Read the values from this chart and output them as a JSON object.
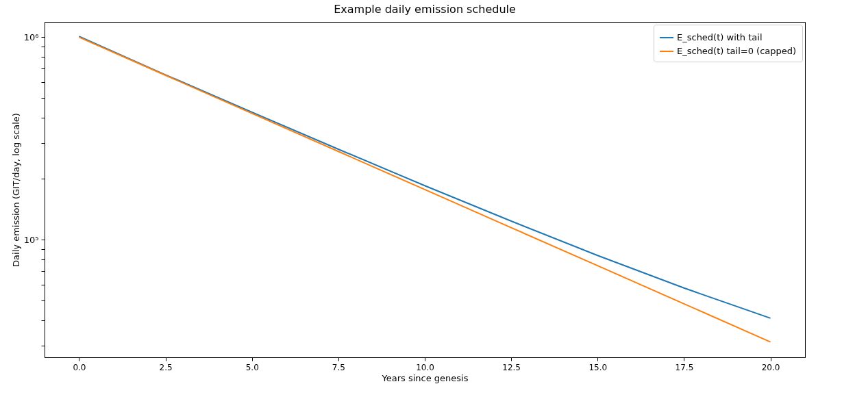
{
  "chart_data": {
    "type": "line",
    "title": "Example daily emission schedule",
    "xlabel": "Years since genesis",
    "ylabel": "Daily emission (GIT/day, log scale)",
    "x": [
      0,
      2.5,
      5,
      7.5,
      10,
      12.5,
      15,
      17.5,
      20
    ],
    "series": [
      {
        "name": "E_sched(t) with tail",
        "color": "#1f77b4",
        "values": [
          1010000,
          652000,
          426500,
          280000,
          185000,
          123700,
          83700,
          57800,
          41000
        ]
      },
      {
        "name": "E_sched(t) tail=0 (capped)",
        "color": "#ff7f0e",
        "values": [
          1000000,
          648600,
          420700,
          272900,
          177000,
          114800,
          74500,
          48300,
          31300
        ]
      }
    ],
    "log": "y",
    "xlim": [
      -1,
      21
    ],
    "ylim": [
      26300,
      1190000
    ],
    "xticks": [
      {
        "value": 0,
        "label": "0.0"
      },
      {
        "value": 2.5,
        "label": "2.5"
      },
      {
        "value": 5,
        "label": "5.0"
      },
      {
        "value": 7.5,
        "label": "7.5"
      },
      {
        "value": 10,
        "label": "10.0"
      },
      {
        "value": 12.5,
        "label": "12.5"
      },
      {
        "value": 15,
        "label": "15.0"
      },
      {
        "value": 17.5,
        "label": "17.5"
      },
      {
        "value": 20,
        "label": "20.0"
      }
    ],
    "yticks": [
      {
        "value": 30000,
        "label": null
      },
      {
        "value": 40000,
        "label": null
      },
      {
        "value": 50000,
        "label": null
      },
      {
        "value": 60000,
        "label": null
      },
      {
        "value": 70000,
        "label": null
      },
      {
        "value": 80000,
        "label": null
      },
      {
        "value": 90000,
        "label": null
      },
      {
        "value": 100000,
        "label": "10⁵"
      },
      {
        "value": 200000,
        "label": null
      },
      {
        "value": 300000,
        "label": null
      },
      {
        "value": 400000,
        "label": null
      },
      {
        "value": 500000,
        "label": null
      },
      {
        "value": 600000,
        "label": null
      },
      {
        "value": 700000,
        "label": null
      },
      {
        "value": 800000,
        "label": null
      },
      {
        "value": 900000,
        "label": null
      },
      {
        "value": 1000000,
        "label": "10⁶"
      }
    ],
    "grid": false,
    "legend": "top right"
  }
}
